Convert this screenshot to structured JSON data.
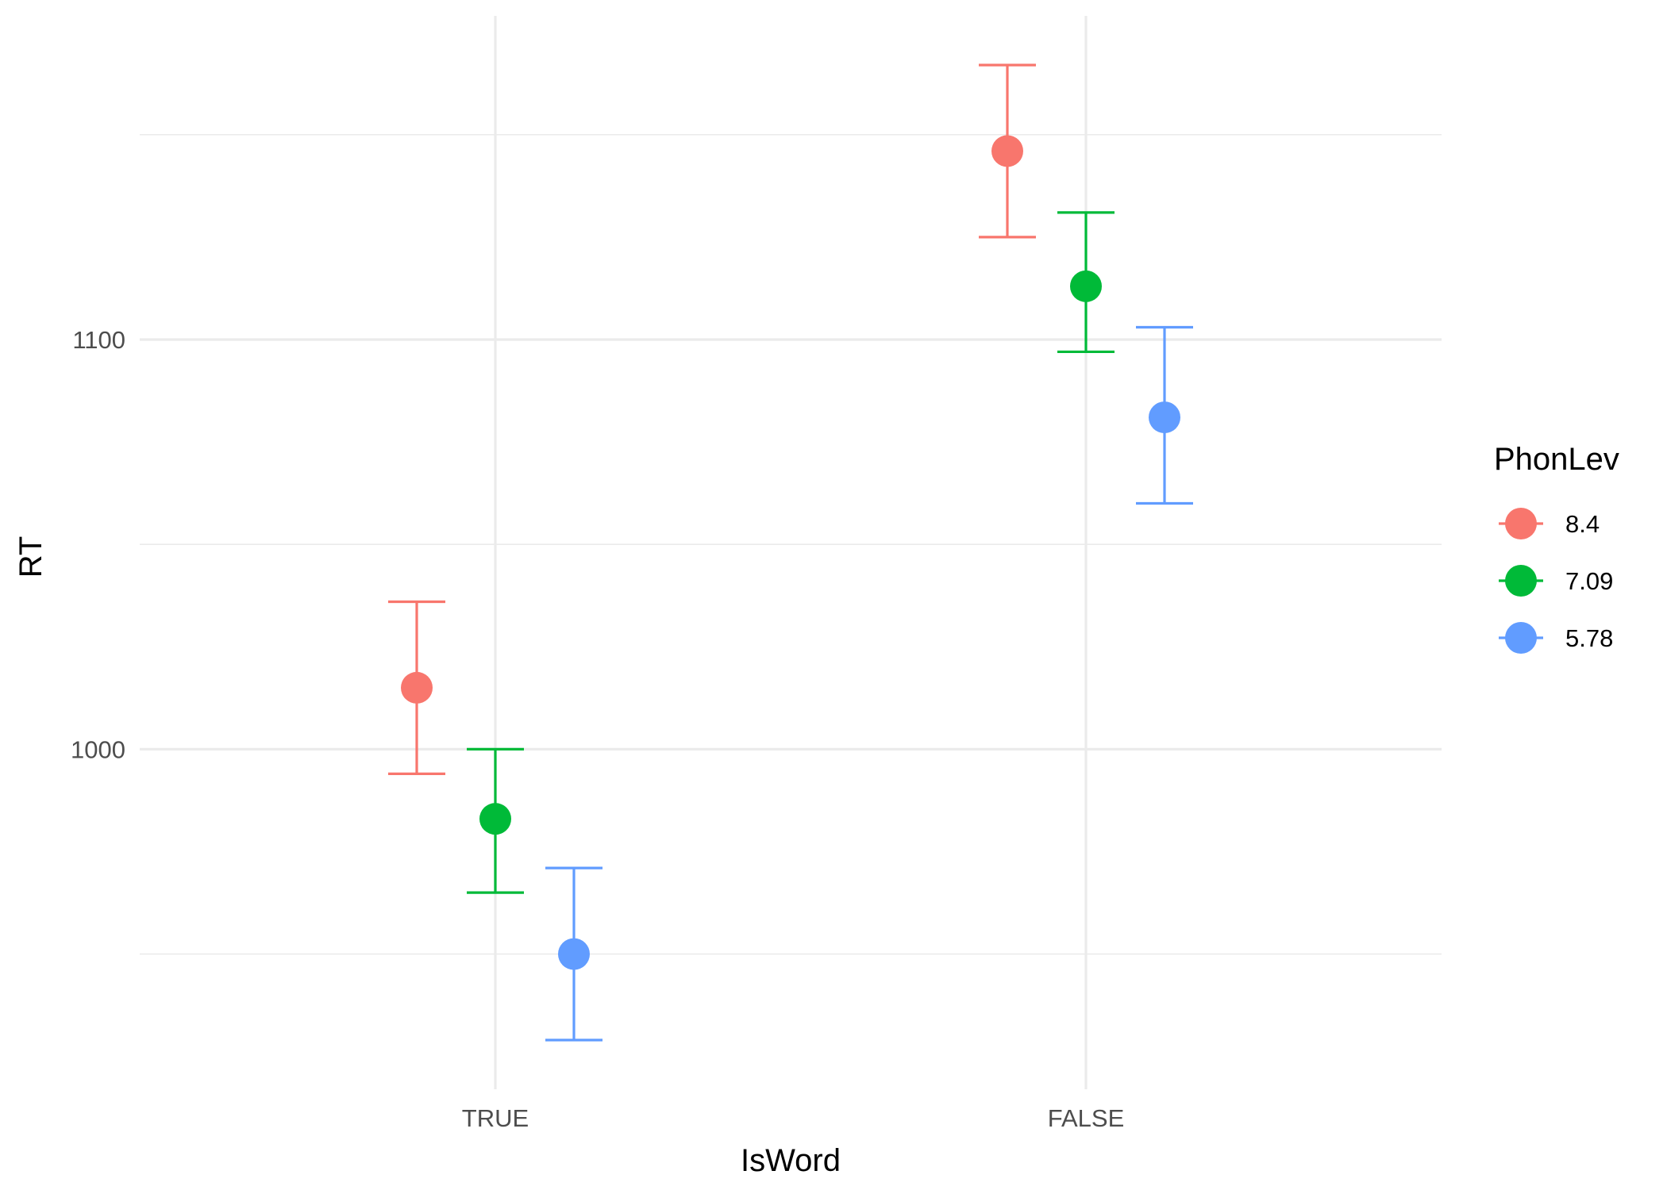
{
  "chart_data": {
    "type": "scatter",
    "subtype": "point-range with error bars",
    "xlabel": "IsWord",
    "ylabel": "RT",
    "categories": [
      "TRUE",
      "FALSE"
    ],
    "ylim": [
      917,
      1179
    ],
    "y_ticks": [
      1000,
      1100
    ],
    "grid": true,
    "legend": {
      "title": "PhonLev",
      "position": "right"
    },
    "series": [
      {
        "name": "8.4",
        "color": "#F8766D",
        "points": [
          {
            "x": "TRUE",
            "y": 1015,
            "ymin": 994,
            "ymax": 1036
          },
          {
            "x": "FALSE",
            "y": 1146,
            "ymin": 1125,
            "ymax": 1167
          }
        ]
      },
      {
        "name": "7.09",
        "color": "#00BA38",
        "points": [
          {
            "x": "TRUE",
            "y": 983,
            "ymin": 965,
            "ymax": 1000
          },
          {
            "x": "FALSE",
            "y": 1113,
            "ymin": 1097,
            "ymax": 1131
          }
        ]
      },
      {
        "name": "5.78",
        "color": "#619CFF",
        "points": [
          {
            "x": "TRUE",
            "y": 950,
            "ymin": 929,
            "ymax": 971
          },
          {
            "x": "FALSE",
            "y": 1081,
            "ymin": 1060,
            "ymax": 1103
          }
        ]
      }
    ]
  }
}
